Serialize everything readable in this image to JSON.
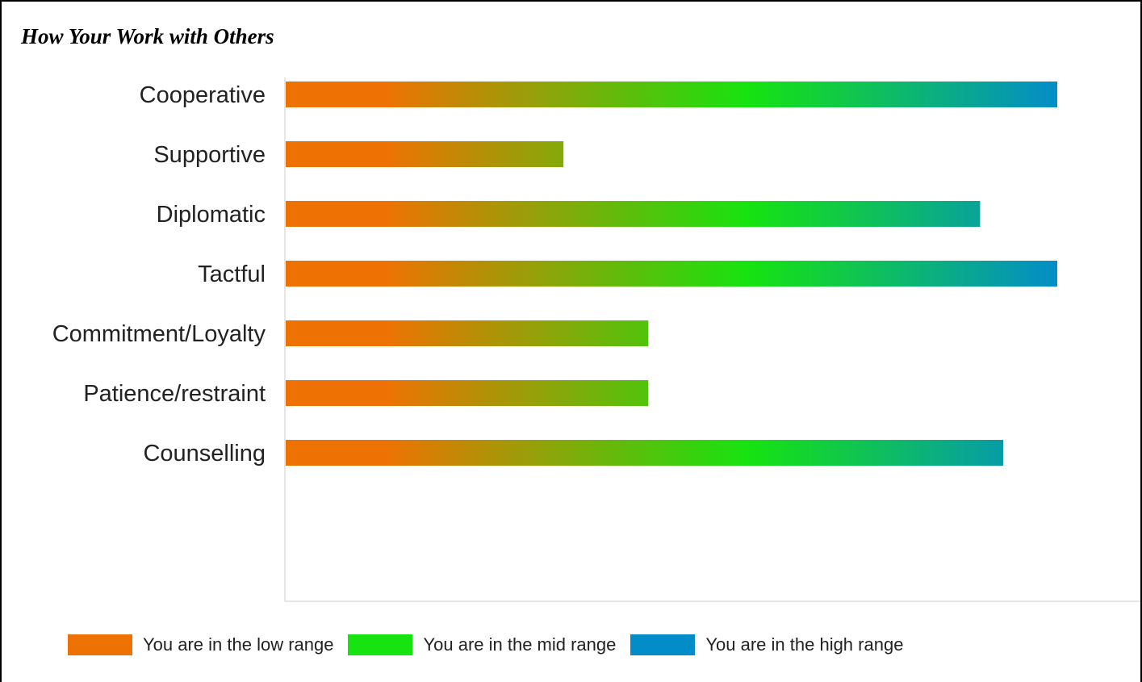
{
  "title": "How Your Work with Others",
  "colors": {
    "low": "#ee7203",
    "mid": "#16e310",
    "high": "#038dc8",
    "axis": "#e6e6e6"
  },
  "chart_data": {
    "type": "bar",
    "orientation": "horizontal",
    "title": "How Your Work with Others",
    "xlabel": "",
    "ylabel": "",
    "categories": [
      "Cooperative",
      "Supportive",
      "Diplomatic",
      "Tactful",
      "Commitment/Loyalty",
      "Patience/restraint",
      "Counselling"
    ],
    "values": [
      100,
      36,
      90,
      100,
      47,
      47,
      93
    ],
    "xlim": [
      0,
      100
    ],
    "grid": false,
    "legend_position": "bottom"
  },
  "legend": [
    {
      "label": "You are in the low range",
      "color": "#ee7203"
    },
    {
      "label": "You are in the mid range",
      "color": "#16e310"
    },
    {
      "label": "You are in the high range",
      "color": "#038dc8"
    }
  ]
}
